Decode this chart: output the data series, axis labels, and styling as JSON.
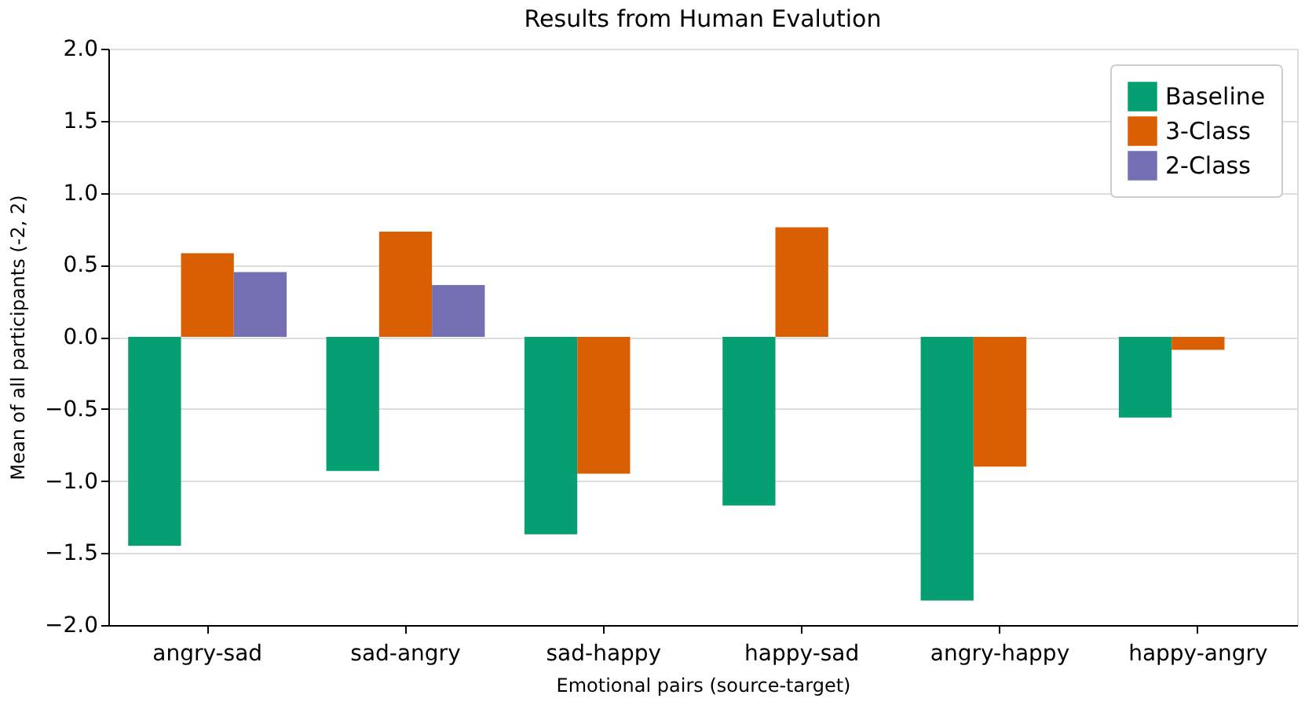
{
  "chart_data": {
    "type": "bar",
    "title": "Results from Human Evalution",
    "xlabel": "Emotional pairs (source-target)",
    "ylabel": "Mean of all participants (-2, 2)",
    "categories": [
      "angry-sad",
      "sad-angry",
      "sad-happy",
      "happy-sad",
      "angry-happy",
      "happy-angry"
    ],
    "series": [
      {
        "name": "Baseline",
        "color": "#069e73",
        "values": [
          -1.45,
          -0.93,
          -1.37,
          -1.17,
          -1.83,
          -0.56
        ]
      },
      {
        "name": "3-Class",
        "color": "#d95f02",
        "values": [
          0.58,
          0.73,
          -0.95,
          0.76,
          -0.9,
          -0.09
        ]
      },
      {
        "name": "2-Class",
        "color": "#7570b3",
        "values": [
          0.45,
          0.36,
          null,
          null,
          null,
          null
        ]
      }
    ],
    "ylim": [
      -2,
      2
    ],
    "yticks": [
      {
        "value": -2,
        "label": "−2.0"
      },
      {
        "value": -1.5,
        "label": "−1.5"
      },
      {
        "value": -1,
        "label": "−1.0"
      },
      {
        "value": -0.5,
        "label": "−0.5"
      },
      {
        "value": 0,
        "label": "0.0"
      },
      {
        "value": 0.5,
        "label": "0.5"
      },
      {
        "value": 1,
        "label": "1.0"
      },
      {
        "value": 1.5,
        "label": "1.5"
      },
      {
        "value": 2,
        "label": "2.0"
      }
    ],
    "grid": "y",
    "legend": "top right"
  }
}
